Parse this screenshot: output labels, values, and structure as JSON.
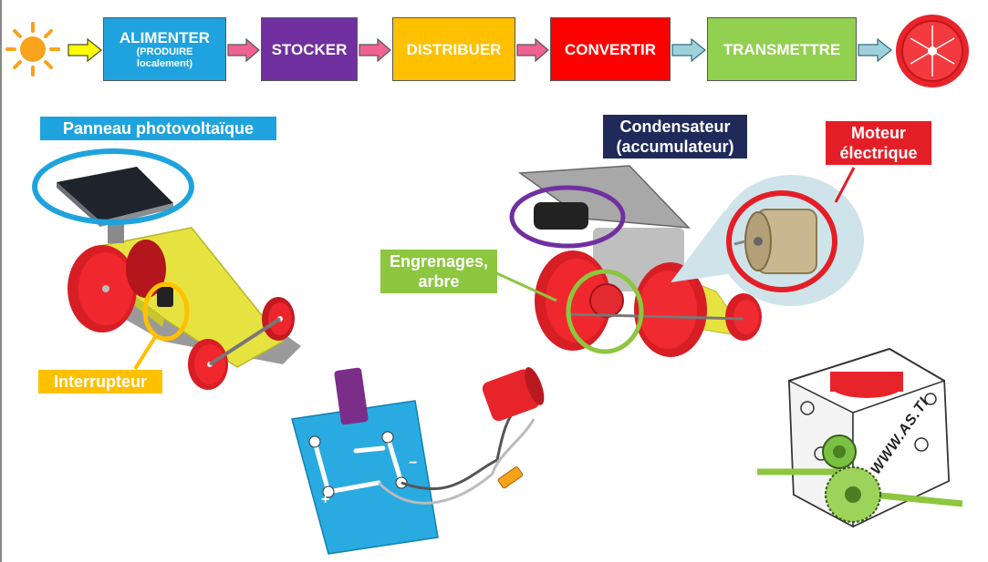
{
  "chain": {
    "items": [
      {
        "label": "ALIMENTER",
        "sub1": "(PRODUIRE",
        "sub2": "localement)",
        "color": "#1fa3de"
      },
      {
        "label": "STOCKER",
        "color": "#7030a0"
      },
      {
        "label": "DISTRIBUER",
        "color": "#ffc000"
      },
      {
        "label": "CONVERTIR",
        "color": "#ff0000"
      },
      {
        "label": "TRANSMETTRE",
        "color": "#92d050"
      }
    ]
  },
  "callouts": {
    "panel": "Panneau photovoltaïque",
    "switch": "Interrupteur",
    "capacitor_l1": "Condensateur",
    "capacitor_l2": "(accumulateur)",
    "motor_l1": "Moteur",
    "motor_l2": "électrique",
    "gears_l1": "Engrenages,",
    "gears_l2": "arbre"
  },
  "board": {
    "plus": "+",
    "minus": "−"
  },
  "gearbox": {
    "watermark": "WWW.AS.TI"
  },
  "colors": {
    "sun": "#f9a21b",
    "panel_callout": "#1fa3de",
    "switch_callout": "#ffc000",
    "capacitor_callout": "#1f2a5a",
    "motor_callout": "#e41e26",
    "gears_callout": "#8dc63f",
    "capacitor_ring": "#7030a0"
  }
}
